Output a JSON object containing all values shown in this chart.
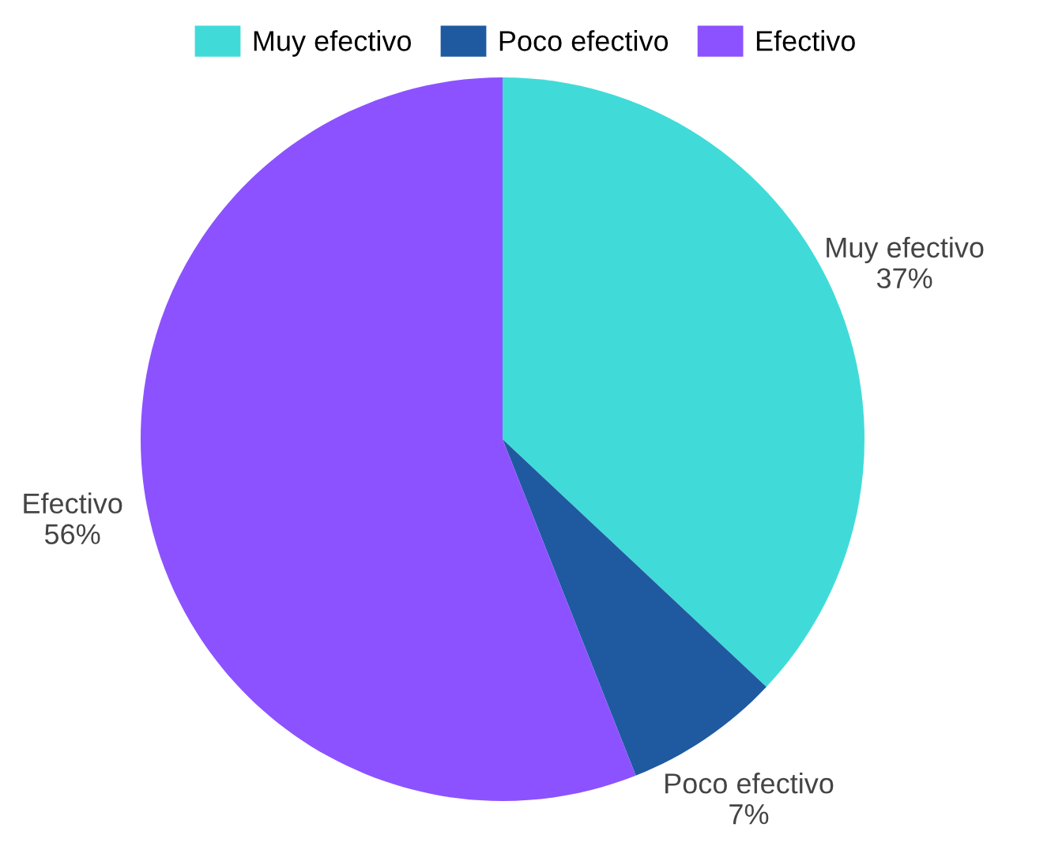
{
  "chart_data": {
    "type": "pie",
    "categories": [
      "Muy efectivo",
      "Poco efectivo",
      "Efectivo"
    ],
    "values": [
      37,
      7,
      56
    ],
    "value_labels": [
      "37%",
      "7%",
      "56%"
    ],
    "colors": [
      "#40dbd9",
      "#1f5aa0",
      "#8c52ff"
    ],
    "legend": "top"
  }
}
